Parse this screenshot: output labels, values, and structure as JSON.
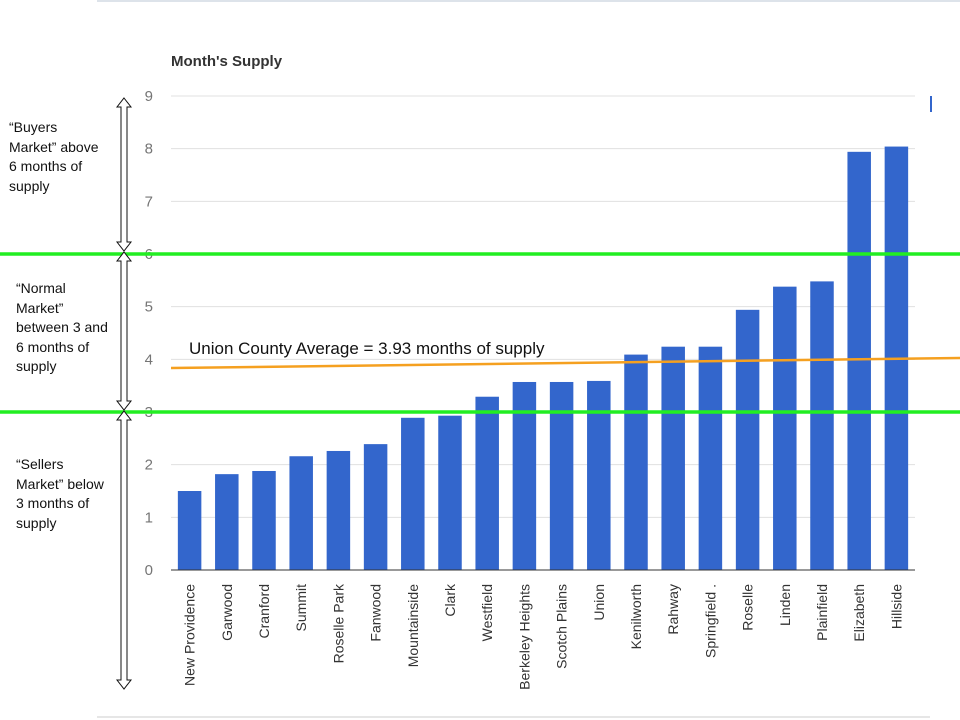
{
  "chart_data": {
    "type": "bar",
    "title": "Month's Supply",
    "categories": [
      "New Providence",
      "Garwood",
      "Cranford",
      "Summit",
      "Roselle Park",
      "Fanwood",
      "Mountainside",
      "Clark",
      "Westfield",
      "Berkeley Heights",
      "Scotch Plains",
      "Union",
      "Kenilworth",
      "Rahway",
      "Springfield .",
      "Roselle",
      "Linden",
      "Plainfield",
      "Elizabeth",
      "Hillside"
    ],
    "values": [
      1.5,
      1.82,
      1.88,
      2.16,
      2.26,
      2.39,
      2.89,
      2.93,
      3.29,
      3.57,
      3.57,
      3.59,
      4.09,
      4.24,
      4.24,
      4.94,
      5.38,
      5.48,
      7.94,
      8.04
    ],
    "yticks": [
      0,
      1,
      2,
      3,
      4,
      5,
      6,
      7,
      8,
      9
    ],
    "ylim": [
      0,
      9
    ],
    "grid": true,
    "bar_color": "#3366cc",
    "reference_lines": [
      {
        "value": 6,
        "color": "#22ee22"
      },
      {
        "value": 3,
        "color": "#22ee22"
      },
      {
        "value": 3.93,
        "color": "#f5a020"
      }
    ],
    "average_label": "Union County Average = 3.93 months of supply"
  },
  "annotations": {
    "buyers": "“Buyers Market” above 6 months of supply",
    "normal": "“Normal Market” between 3 and 6 months of supply",
    "sellers": "“Sellers Market” below 3 months of supply"
  }
}
